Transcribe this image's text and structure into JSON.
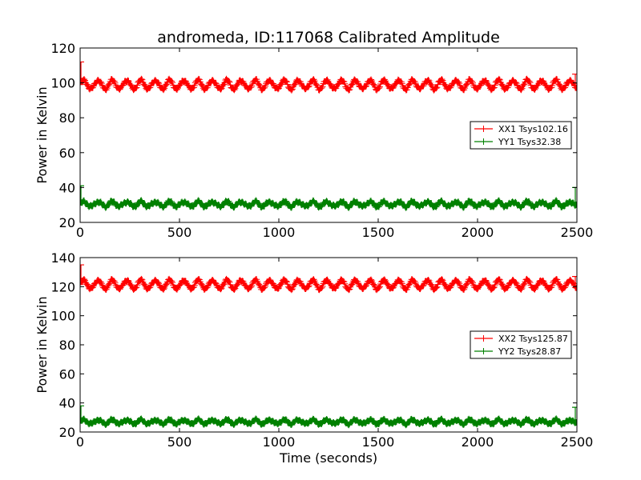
{
  "chart_data": {
    "title": "andromeda, ID:117068 Calibrated Amplitude",
    "xlabel": "Time (seconds)",
    "colors": {
      "xx": "#ff0000",
      "yy": "#008000"
    },
    "panels": [
      {
        "type": "line",
        "ylabel": "Power in Kelvin",
        "xlim": [
          0,
          2500
        ],
        "ylim": [
          20,
          120
        ],
        "xticks": [
          "0",
          "500",
          "1000",
          "1500",
          "2000",
          "2500"
        ],
        "yticks": [
          "20",
          "40",
          "60",
          "80",
          "100",
          "120"
        ],
        "legend_position": "center-right",
        "series": [
          {
            "name": "XX1 Tsys102.16",
            "color": "#ff0000",
            "mean": 99,
            "amplitude": 2.5,
            "period_seconds": 72,
            "start_value": 112,
            "end_value": 105
          },
          {
            "name": "YY1 Tsys32.38",
            "color": "#008000",
            "mean": 30.5,
            "amplitude": 1.3,
            "period_seconds": 72,
            "start_value": 41,
            "end_value": 40
          }
        ]
      },
      {
        "type": "line",
        "ylabel": "Power in Kelvin",
        "xlabel": "Time (seconds)",
        "xlim": [
          0,
          2500
        ],
        "ylim": [
          20,
          140
        ],
        "xticks": [
          "0",
          "500",
          "1000",
          "1500",
          "2000",
          "2500"
        ],
        "yticks": [
          "20",
          "40",
          "60",
          "80",
          "100",
          "120",
          "140"
        ],
        "legend_position": "center-right",
        "series": [
          {
            "name": "XX2 Tsys125.87",
            "color": "#ff0000",
            "mean": 121.5,
            "amplitude": 3,
            "period_seconds": 72,
            "start_value": 135,
            "end_value": 127
          },
          {
            "name": "YY2 Tsys28.87",
            "color": "#008000",
            "mean": 27,
            "amplitude": 1.3,
            "period_seconds": 72,
            "start_value": 38,
            "end_value": 37
          }
        ]
      }
    ]
  }
}
